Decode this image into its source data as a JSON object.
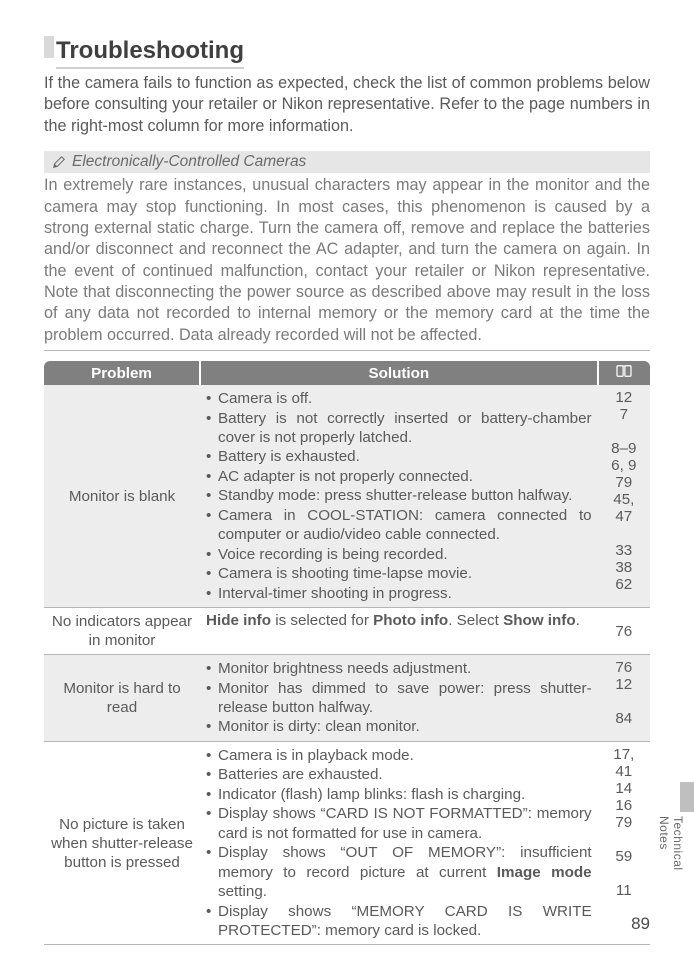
{
  "title": "Troubleshooting",
  "intro": "If the camera fails to function as expected, check the list of common problems below before consulting your retailer or Nikon representative.  Refer to the page numbers in the right-most column for more information.",
  "note": {
    "header": "Electronically-Controlled Cameras",
    "body": "In extremely rare instances, unusual characters may appear in the monitor and the camera may stop functioning.  In most cases, this phenomenon is caused by a strong external static charge.  Turn the camera off, remove and replace the batteries and/or disconnect and reconnect the AC adapter, and turn the camera on again.  In the event of continued malfunction, contact your retailer or Nikon representative.  Note that disconnecting the power source as described above may result in the loss of any data not recorded to internal memory or the memory card at the time the problem occurred.  Data already recorded will not be affected."
  },
  "table": {
    "headers": {
      "problem": "Problem",
      "solution": "Solution"
    },
    "col_widths": {
      "problem": 155,
      "solution": 395,
      "page": 52
    },
    "rows": [
      {
        "alt": true,
        "problem": "Monitor is blank",
        "solution_bullets": [
          "Camera is off.",
          "Battery is not correctly inserted or battery-chamber cover is not properly latched.",
          "Battery is exhausted.",
          "AC adapter is not properly connected.",
          "Standby mode: press shutter-release button halfway.",
          "Camera in COOL-STATION: camera connected to computer or audio/video cable connected.",
          "Voice recording is being recorded.",
          "Camera is shooting time-lapse movie.",
          "Interval-timer shooting in progress."
        ],
        "pages": "12\n7\n\n8–9\n6, 9\n79\n45, 47\n\n33\n38\n62"
      },
      {
        "alt": false,
        "problem": "No indicators appear in monitor",
        "solution_html": "<b>Hide info</b> is selected for <b>Photo info</b>.  Select <b>Show info</b>.",
        "pages": "76"
      },
      {
        "alt": true,
        "problem": "Monitor is hard to read",
        "solution_bullets": [
          "Monitor brightness needs adjustment.",
          "Monitor has dimmed to save power: press shutter-release button halfway.",
          "Monitor is dirty: clean monitor."
        ],
        "pages": "76\n12\n\n84"
      },
      {
        "alt": false,
        "problem": "No picture is taken when shutter-release button is pressed",
        "solution_bullets": [
          "Camera is in playback mode.",
          "Batteries are exhausted.",
          "Indicator (flash) lamp blinks: flash is charging.",
          "Display shows “CARD IS NOT FORMATTED”: memory card is not formatted for use in camera.",
          "Display shows “OUT OF MEMORY”: insufficient memory to record picture at current <b>Image mode</b> setting.",
          "Display shows “MEMORY CARD IS WRITE PROTECTED”: memory card is locked."
        ],
        "pages": "17, 41\n14\n16\n79\n\n59\n\n11"
      }
    ]
  },
  "side_label": "Technical Notes",
  "page_number": "89",
  "colors": {
    "header_bg": "#808080",
    "alt_bg": "#ededed",
    "text": "#5a5a5a",
    "muted": "#7a7a7a"
  }
}
